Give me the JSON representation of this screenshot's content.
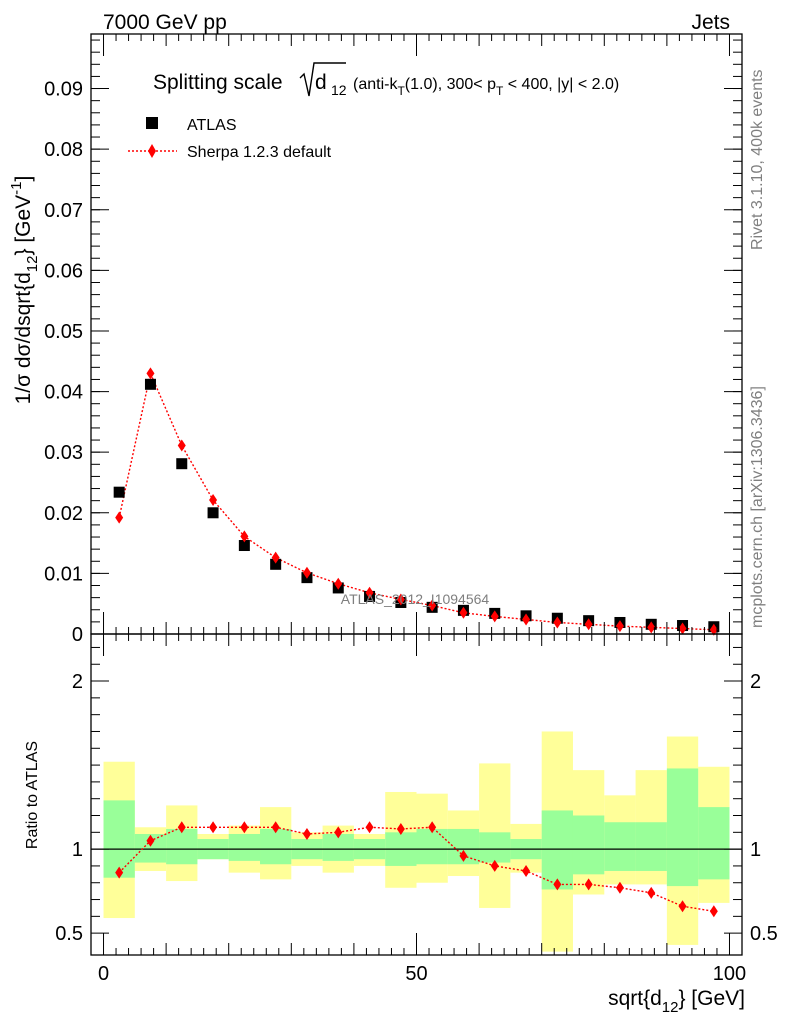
{
  "header": {
    "energy_label": "7000 GeV pp",
    "category_label": "Jets"
  },
  "side_labels": {
    "rivet": "Rivet 3.1.10,  400k events",
    "mcplots": "mcplots.cern.ch [arXiv:1306.3436]"
  },
  "watermark": "ATLAS_2012_I1094564",
  "chart_data": [
    {
      "type": "scatter",
      "title_main": "Splitting scale",
      "title_symbol": "√d",
      "title_subscript": "12",
      "title_paren_part1": " (anti-k",
      "title_kt_sub": "T",
      "title_paren_part2": "(1.0), 300< p",
      "title_pt_sub": "T",
      "title_paren_part3": " < 400, |y| < 2.0)",
      "ylabel": "1/σ dσ/dsqrt{d_12} [GeV^-1]",
      "ylabel_main": "1/σ dσ/dsqrt{d",
      "ylabel_sub": "12",
      "ylabel_mid": "} [GeV",
      "ylabel_sup": "-1",
      "ylabel_end": "]",
      "xlim": [
        -2,
        102
      ],
      "ylim": [
        0,
        0.099
      ],
      "yticks": [
        0,
        0.01,
        0.02,
        0.03,
        0.04,
        0.05,
        0.06,
        0.07,
        0.08,
        0.09
      ],
      "ytick_labels": [
        "0",
        "0.01",
        "0.02",
        "0.03",
        "0.04",
        "0.05",
        "0.06",
        "0.07",
        "0.08",
        "0.09"
      ],
      "legend_position": "top-left",
      "x": [
        2.5,
        7.5,
        12.5,
        17.5,
        22.5,
        27.5,
        32.5,
        37.5,
        42.5,
        47.5,
        52.5,
        57.5,
        62.5,
        67.5,
        72.5,
        77.5,
        82.5,
        87.5,
        92.5,
        97.5
      ],
      "series": [
        {
          "name": "ATLAS",
          "color": "#000000",
          "marker": "square",
          "values": [
            0.0234,
            0.0412,
            0.0281,
            0.02,
            0.0146,
            0.0115,
            0.0093,
            0.0076,
            0.0062,
            0.0052,
            0.0044,
            0.0039,
            0.0034,
            0.003,
            0.0026,
            0.0022,
            0.0019,
            0.0016,
            0.0014,
            0.0012
          ]
        },
        {
          "name": "Sherpa 1.2.3 default",
          "color": "#ff0000",
          "marker": "diamond",
          "line": "dotted",
          "values": [
            0.0192,
            0.043,
            0.0311,
            0.0221,
            0.0161,
            0.0126,
            0.0101,
            0.0083,
            0.0068,
            0.0057,
            0.0047,
            0.0035,
            0.0029,
            0.0024,
            0.0019,
            0.0016,
            0.0013,
            0.0011,
            0.0009,
            0.0007
          ]
        }
      ]
    },
    {
      "type": "scatter",
      "xlabel": "sqrt{d_12} [GeV]",
      "xlabel_main": "sqrt{d",
      "xlabel_sub": "12",
      "xlabel_end": "} [GeV]",
      "ylabel": "Ratio to ATLAS",
      "xlim": [
        -2,
        102
      ],
      "ylim": [
        0.37,
        2.28
      ],
      "xticks": [
        0,
        50,
        100
      ],
      "xtick_labels": [
        "0",
        "50",
        "100"
      ],
      "yticks": [
        0.5,
        1,
        2
      ],
      "ytick_labels": [
        "0.5",
        "1",
        "2"
      ],
      "reference_line": 1,
      "x_edges": [
        0,
        5,
        10,
        15,
        20,
        25,
        30,
        35,
        40,
        45,
        50,
        55,
        60,
        65,
        70,
        75,
        80,
        85,
        90,
        95,
        100
      ],
      "band_inner": [
        [
          0.83,
          1.29
        ],
        [
          0.92,
          1.09
        ],
        [
          0.91,
          1.12
        ],
        [
          0.94,
          1.06
        ],
        [
          0.93,
          1.09
        ],
        [
          0.91,
          1.12
        ],
        [
          0.94,
          1.06
        ],
        [
          0.93,
          1.09
        ],
        [
          0.94,
          1.06
        ],
        [
          0.9,
          1.1
        ],
        [
          0.91,
          1.12
        ],
        [
          0.91,
          1.12
        ],
        [
          0.92,
          1.1
        ],
        [
          0.94,
          1.06
        ],
        [
          0.76,
          1.23
        ],
        [
          0.85,
          1.2
        ],
        [
          0.87,
          1.16
        ],
        [
          0.87,
          1.16
        ],
        [
          0.78,
          1.48
        ],
        [
          0.82,
          1.25
        ]
      ],
      "band_outer": [
        [
          0.59,
          1.52
        ],
        [
          0.87,
          1.13
        ],
        [
          0.81,
          1.26
        ],
        [
          0.94,
          1.09
        ],
        [
          0.86,
          1.14
        ],
        [
          0.82,
          1.25
        ],
        [
          0.9,
          1.1
        ],
        [
          0.86,
          1.14
        ],
        [
          0.9,
          1.09
        ],
        [
          0.77,
          1.34
        ],
        [
          0.8,
          1.33
        ],
        [
          0.84,
          1.23
        ],
        [
          0.65,
          1.51
        ],
        [
          0.86,
          1.15
        ],
        [
          0.39,
          1.7
        ],
        [
          0.73,
          1.47
        ],
        [
          0.79,
          1.32
        ],
        [
          0.79,
          1.47
        ],
        [
          0.43,
          1.67
        ],
        [
          0.68,
          1.49
        ]
      ],
      "series": [
        {
          "name": "Sherpa 1.2.3 default",
          "color": "#ff0000",
          "marker": "diamond",
          "line": "dotted",
          "values": [
            0.86,
            1.05,
            1.13,
            1.13,
            1.13,
            1.13,
            1.09,
            1.1,
            1.13,
            1.12,
            1.13,
            0.96,
            0.9,
            0.87,
            0.79,
            0.79,
            0.77,
            0.74,
            0.66,
            0.63
          ]
        }
      ],
      "colors": {
        "band_outer": "#ffff99",
        "band_inner": "#99ff99"
      }
    }
  ]
}
